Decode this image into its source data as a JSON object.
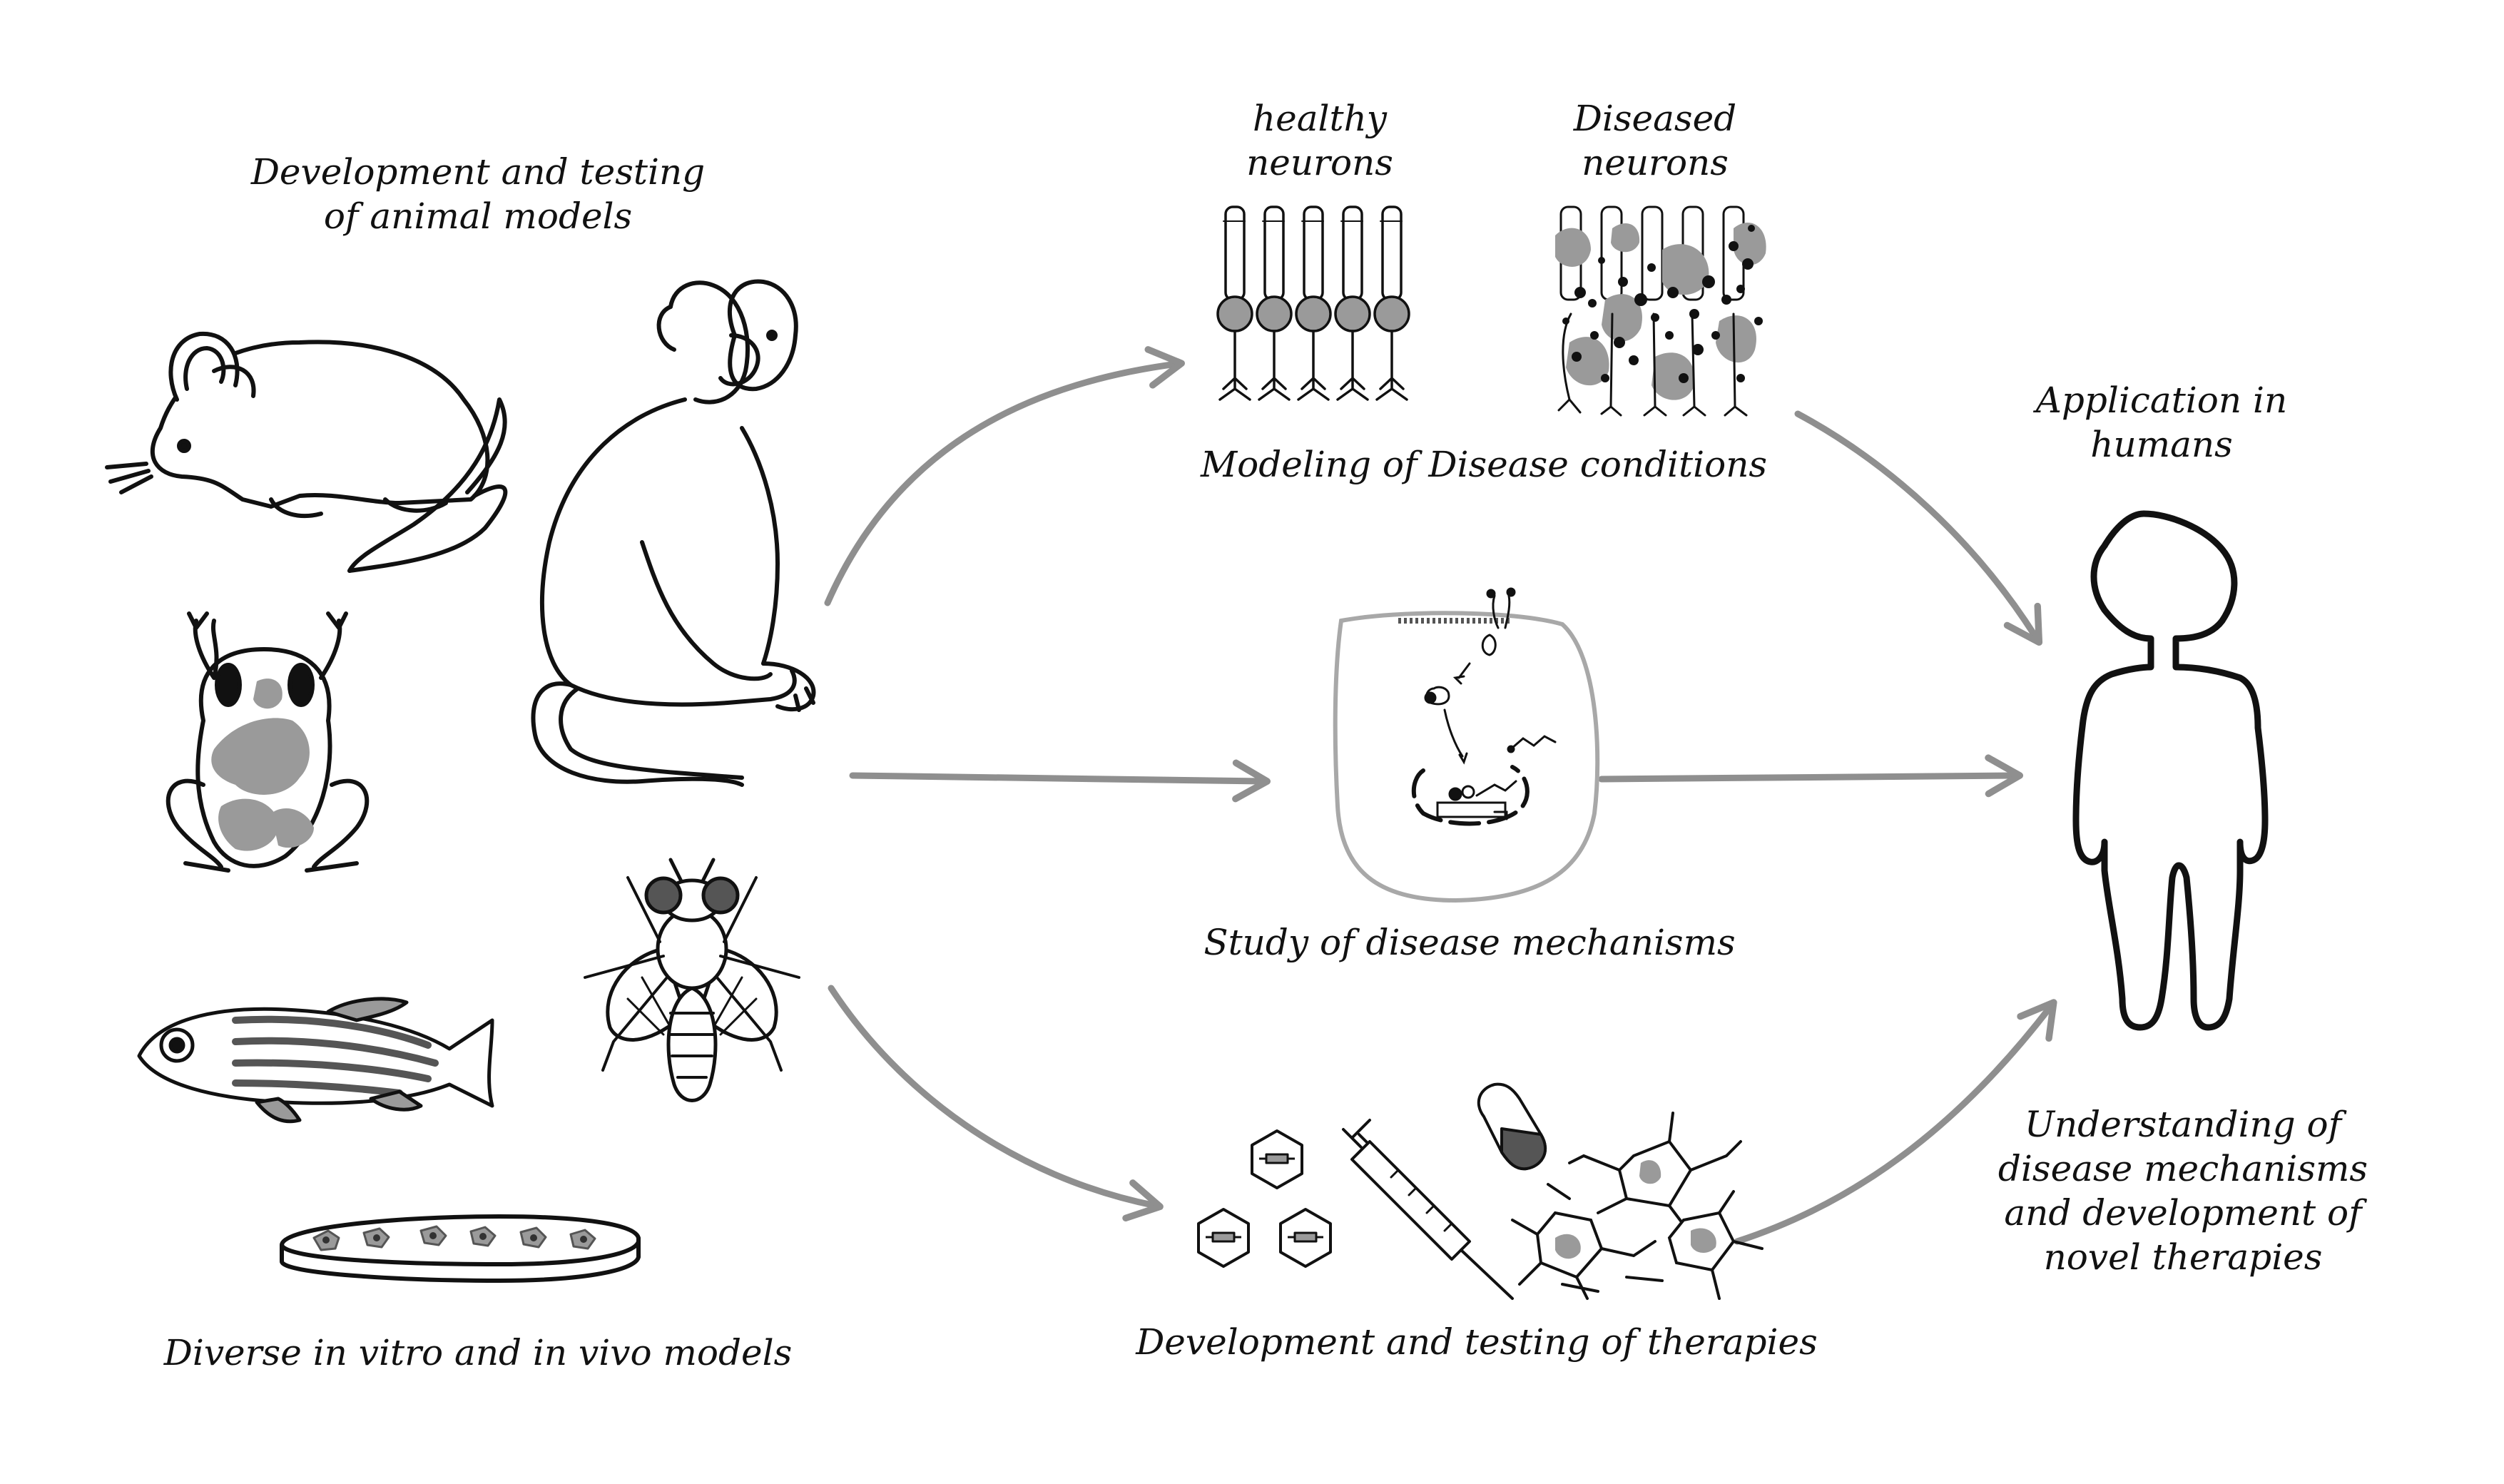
{
  "labels": {
    "animal_models": [
      "Development and testing",
      "of animal models"
    ],
    "in_vitro_vivo": "Diverse in vitro and in vivo models",
    "healthy_neurons": [
      "healthy",
      "neurons"
    ],
    "diseased_neurons": [
      "Diseased",
      "neurons"
    ],
    "modeling": "Modeling of Disease conditions",
    "mechanisms": "Study of disease mechanisms",
    "therapies": "Development and testing of therapies",
    "application": [
      "Application in",
      "humans"
    ],
    "understanding": [
      "Understanding of",
      "disease mechanisms",
      "and development of",
      "novel therapies"
    ]
  },
  "colors": {
    "ink": "#111111",
    "arrow": "#8f8f8f",
    "patch": "#9a9a9a",
    "cell_border": "#a8a8a8"
  },
  "icons": [
    "mouse-icon",
    "monkey-icon",
    "frog-icon",
    "zebrafish-icon",
    "fruit-fly-icon",
    "petri-dish-icon",
    "neurons-healthy-icon",
    "neurons-diseased-icon",
    "cell-icon",
    "drug-molecule-icon",
    "syringe-icon",
    "pill-icon",
    "neural-network-icon",
    "human-icon"
  ]
}
